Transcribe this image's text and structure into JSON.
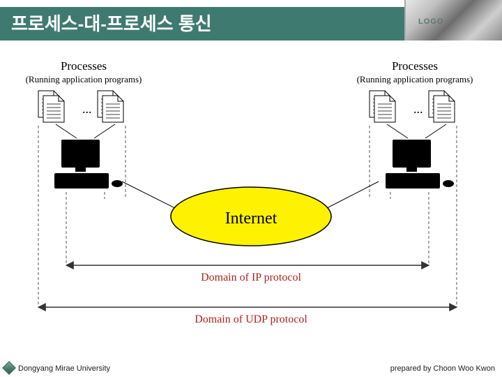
{
  "header": {
    "title": "프로세스-대-프로세스 통신",
    "teal_color": "#3e7a70",
    "title_color": "#ffffff",
    "logo_text": "LOGO"
  },
  "diagram": {
    "top_left": {
      "title": "Processes",
      "sub": "(Running application programs)",
      "title_fontsize": 17,
      "sub_fontsize": 13,
      "text_color": "#000000"
    },
    "top_right": {
      "title": "Processes",
      "sub": "(Running application programs)",
      "title_fontsize": 17,
      "sub_fontsize": 13,
      "text_color": "#000000"
    },
    "center": {
      "label": "Internet",
      "fontsize": 24,
      "fill": "#fff200",
      "stroke": "#000000",
      "text_color": "#000000"
    },
    "domain_ip": {
      "label": "Domain of IP protocol",
      "fontsize": 16,
      "color": "#b22121"
    },
    "domain_udp": {
      "label": "Domain of UDP protocol",
      "fontsize": 16,
      "color": "#b22121"
    },
    "doc_icon": {
      "fill": "#ffffff",
      "stroke": "#000000"
    },
    "computer_icon": {
      "monitor_fill": "#f2f2f2",
      "case_fill": "#ededed",
      "stroke": "#333333"
    },
    "dashed": {
      "color": "#555555",
      "dash": "4 3",
      "width": 1
    },
    "arrow": {
      "color": "#333333",
      "width": 1.5
    }
  },
  "footer": {
    "university": "Dongyang Mirae University",
    "author": "prepared by Choon Woo Kwon",
    "text_color": "#1a1a1a"
  }
}
